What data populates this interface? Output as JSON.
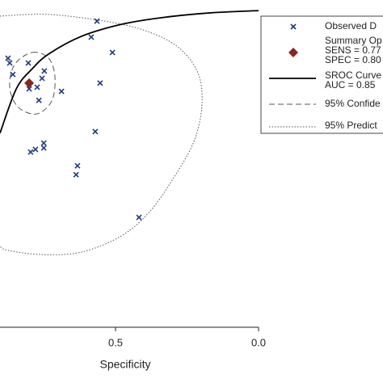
{
  "chart_data": {
    "type": "sroc",
    "x_label": "Specificity",
    "xlim": [
      0.904,
      0
    ],
    "ylim": [
      0,
      1
    ],
    "xticks": [
      {
        "value": 0.5,
        "label": "0.5"
      },
      {
        "value": 0,
        "label": "0.0"
      }
    ],
    "observed": {
      "name": "Observed D",
      "color": "#1f3a7a",
      "x": [
        0.565,
        0.585,
        0.511,
        0.876,
        0.87,
        0.805,
        0.859,
        0.749,
        0.757,
        0.802,
        0.774,
        0.768,
        0.689,
        0.554,
        0.571,
        0.751,
        0.751,
        0.78,
        0.797,
        0.633,
        0.638,
        0.418
      ],
      "y": [
        0.959,
        0.909,
        0.861,
        0.843,
        0.828,
        0.828,
        0.792,
        0.803,
        0.78,
        0.747,
        0.752,
        0.711,
        0.739,
        0.765,
        0.613,
        0.577,
        0.562,
        0.557,
        0.549,
        0.506,
        0.478,
        0.344
      ]
    },
    "summary": {
      "name": "Summary Op",
      "sens_label": "SENS = 0.77",
      "spec_label": "SPEC = 0.80",
      "color": "#8b2323",
      "x": 0.802,
      "y": 0.765
    },
    "sroc_curve": {
      "name": "SROC Curve",
      "auc_label": "AUC = 0.85",
      "color": "#000000",
      "x": [
        0.904,
        0.847,
        0.791,
        0.734,
        0.621,
        0.48,
        0.339,
        0.169,
        0
      ],
      "y": [
        0.608,
        0.747,
        0.81,
        0.856,
        0.911,
        0.949,
        0.97,
        0.985,
        0.992
      ]
    },
    "confidence_region": {
      "name": "95% Confide",
      "color": "#555555",
      "x": [
        0.791,
        0.734,
        0.712,
        0.723,
        0.777,
        0.842,
        0.87,
        0.853
      ],
      "y": [
        0.861,
        0.843,
        0.785,
        0.709,
        0.668,
        0.691,
        0.752,
        0.823
      ]
    },
    "prediction_region": {
      "name": "95% Predict",
      "color": "#555555",
      "x": [
        0.904,
        0.734,
        0.537,
        0.395,
        0.282,
        0.212,
        0.198,
        0.226,
        0.297,
        0.381,
        0.48,
        0.621,
        0.763,
        0.876,
        0.904
      ],
      "y": [
        0.975,
        0.98,
        0.959,
        0.929,
        0.878,
        0.797,
        0.696,
        0.582,
        0.468,
        0.362,
        0.286,
        0.235,
        0.228,
        0.241,
        0.253
      ]
    }
  }
}
